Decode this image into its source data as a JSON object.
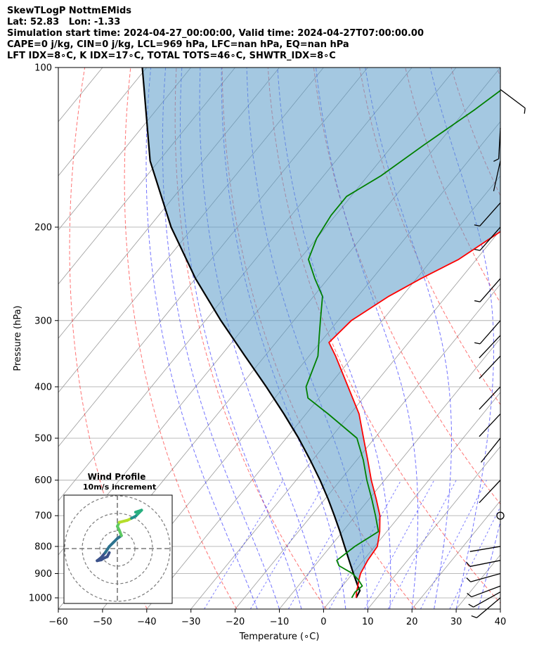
{
  "header": {
    "line1": "SkewTLogP NottmEMids",
    "line2": "Lat: 52.83   Lon: -1.33",
    "line3": "Simulation start time: 2024-04-27_00:00:00, Valid time: 2024-04-27T07:00:00.00",
    "line4": "CAPE=0 j/kg, CIN=0 j/kg, LCL=969 hPa, LFC=nan hPa, EQ=nan hPa",
    "line5": "LFT IDX=8∘C, K IDX=17∘C, TOTAL TOTS=46∘C, SHWTR_IDX=8∘C"
  },
  "chart_data": {
    "type": "line",
    "subtype": "skew-T log-P diagram",
    "xlabel": "Temperature (∘C)",
    "ylabel": "Pressure (hPa)",
    "xlim": [
      -60,
      40
    ],
    "ylim_hPa": [
      1050,
      100
    ],
    "x_ticks": [
      "−60",
      "−50",
      "−40",
      "−30",
      "−20",
      "−10",
      "0",
      "10",
      "20",
      "30",
      "40"
    ],
    "x_tick_values": [
      -60,
      -50,
      -40,
      -30,
      -20,
      -10,
      0,
      10,
      20,
      30,
      40
    ],
    "y_ticks": [
      "1000",
      "900",
      "800",
      "700",
      "600",
      "500",
      "400",
      "300",
      "200",
      "100"
    ],
    "y_tick_values": [
      1000,
      900,
      800,
      700,
      600,
      500,
      400,
      300,
      200,
      100
    ],
    "grid": true,
    "series": [
      {
        "color": "#ff0000",
        "points": [
          [
            1000,
            5.3
          ],
          [
            975,
            4.3
          ],
          [
            950,
            3.5
          ],
          [
            925,
            2.6
          ],
          [
            900,
            1.8
          ],
          [
            850,
            1.0
          ],
          [
            800,
            0.6
          ],
          [
            750,
            -1.6
          ],
          [
            700,
            -4.5
          ],
          [
            650,
            -8.5
          ],
          [
            600,
            -13
          ],
          [
            550,
            -17.5
          ],
          [
            500,
            -22.5
          ],
          [
            450,
            -28
          ],
          [
            400,
            -35.5
          ],
          [
            350,
            -44
          ],
          [
            330,
            -48
          ],
          [
            300,
            -47
          ],
          [
            270,
            -43
          ],
          [
            250,
            -39
          ],
          [
            230,
            -34
          ],
          [
            200,
            -29
          ],
          [
            180,
            -27
          ],
          [
            160,
            -26
          ],
          [
            140,
            -27.5
          ],
          [
            120,
            -30
          ],
          [
            100,
            -34
          ]
        ]
      },
      {
        "color": "#008000",
        "points": [
          [
            1000,
            4.3
          ],
          [
            975,
            4.0
          ],
          [
            950,
            4.5
          ],
          [
            925,
            2.5
          ],
          [
            900,
            0.0
          ],
          [
            870,
            -4.5
          ],
          [
            850,
            -6.0
          ],
          [
            800,
            -4.5
          ],
          [
            750,
            -1.9
          ],
          [
            700,
            -5.5
          ],
          [
            650,
            -9.5
          ],
          [
            600,
            -14
          ],
          [
            550,
            -18.5
          ],
          [
            500,
            -24
          ],
          [
            450,
            -35
          ],
          [
            420,
            -42.5
          ],
          [
            400,
            -45
          ],
          [
            350,
            -48
          ],
          [
            320,
            -51.5
          ],
          [
            300,
            -54
          ],
          [
            270,
            -58
          ],
          [
            250,
            -63
          ],
          [
            230,
            -68
          ],
          [
            210,
            -70
          ],
          [
            190,
            -71
          ],
          [
            175,
            -71
          ],
          [
            160,
            -67
          ],
          [
            140,
            -63
          ],
          [
            120,
            -58
          ],
          [
            100,
            -53
          ]
        ]
      },
      {
        "color": "#000000",
        "points": [
          [
            1000,
            5.3
          ],
          [
            969,
            4.8
          ],
          [
            950,
            3.5
          ],
          [
            900,
            0.2
          ],
          [
            850,
            -3.2
          ],
          [
            800,
            -6.8
          ],
          [
            750,
            -10.6
          ],
          [
            700,
            -14.8
          ],
          [
            650,
            -19.4
          ],
          [
            600,
            -24.6
          ],
          [
            550,
            -30.5
          ],
          [
            500,
            -37.2
          ],
          [
            450,
            -45
          ],
          [
            400,
            -54
          ],
          [
            350,
            -64.5
          ],
          [
            300,
            -76.5
          ],
          [
            250,
            -90
          ],
          [
            200,
            -105
          ],
          [
            150,
            -122
          ],
          [
            100,
            -141
          ]
        ]
      }
    ],
    "dry_adiabats_theta_K": [
      230,
      250,
      270,
      290,
      310,
      330,
      350,
      370,
      390,
      410,
      430,
      450
    ],
    "moist_adiabats_degC": [
      -15,
      -10,
      -5,
      0,
      5,
      10,
      15,
      20,
      25,
      30,
      35
    ],
    "mixing_ratio_lines_gkg": [
      0.4,
      1,
      2,
      4,
      7,
      10,
      16,
      24
    ],
    "wind_barbs": [
      {
        "p": 1000,
        "u": -6.9,
        "v": -5.8
      },
      {
        "p": 975,
        "u": -7.5,
        "v": -4.2
      },
      {
        "p": 950,
        "u": -8.0,
        "v": -3.0
      },
      {
        "p": 900,
        "u": -7.2,
        "v": -2.0
      },
      {
        "p": 850,
        "u": -5.0,
        "v": -1.0
      },
      {
        "p": 800,
        "u": -3.0,
        "v": -0.5
      },
      {
        "p": 700,
        "u": 0,
        "v": 0
      },
      {
        "p": 600,
        "u": -3.0,
        "v": -3.2
      },
      {
        "p": 500,
        "u": -2.0,
        "v": -2.5
      },
      {
        "p": 450,
        "u": -3.0,
        "v": -3.2
      },
      {
        "p": 400,
        "u": -3.0,
        "v": -3.2
      },
      {
        "p": 350,
        "u": -3.0,
        "v": -3.2
      },
      {
        "p": 320,
        "u": -3.0,
        "v": -3.2
      },
      {
        "p": 300,
        "u": -3.5,
        "v": -4.0
      },
      {
        "p": 250,
        "u": -3.5,
        "v": -4.0
      },
      {
        "p": 200,
        "u": -3.5,
        "v": -4.0
      },
      {
        "p": 180,
        "u": -4.0,
        "v": -4.5
      },
      {
        "p": 150,
        "u": -1.0,
        "v": -4.5
      },
      {
        "p": 130,
        "u": -0.3,
        "v": -5.5
      },
      {
        "p": 110,
        "u": 4.0,
        "v": -3.0
      }
    ],
    "inset": {
      "title": "Wind Profile",
      "subtitle": "10m/s increment",
      "rings_ms": [
        10,
        20,
        30
      ],
      "hodograph_uv": [
        [
          -2.0,
          -1.0
        ],
        [
          -2.5,
          -2.0
        ],
        [
          -3.2,
          -2.3
        ],
        [
          -4.0,
          -2.8
        ],
        [
          -5.0,
          -3.0
        ],
        [
          -4.0,
          -2.2
        ],
        [
          -3.0,
          -1.0
        ],
        [
          -2.0,
          0.5
        ],
        [
          -1.0,
          1.5
        ],
        [
          0.0,
          2.5
        ],
        [
          1.0,
          3.2
        ],
        [
          0.5,
          4.5
        ],
        [
          0.0,
          5.5
        ],
        [
          0.5,
          6.5
        ],
        [
          2.5,
          7.0
        ],
        [
          3.5,
          7.5
        ],
        [
          4.5,
          8.0
        ],
        [
          5.0,
          8.5
        ],
        [
          5.5,
          9.0
        ],
        [
          6.0,
          9.5
        ],
        [
          4.5,
          9.0
        ]
      ]
    },
    "colors": {
      "temperature": "#ff0000",
      "dewpoint": "#008000",
      "parcel": "#000000",
      "cape_fill": "#5a9bc8",
      "dry_adiabat": "#ff0000",
      "moist_adiabat": "#0000ff",
      "mixing_ratio": "#0000ff",
      "isotherm_grid": "#9a9a9a"
    }
  }
}
